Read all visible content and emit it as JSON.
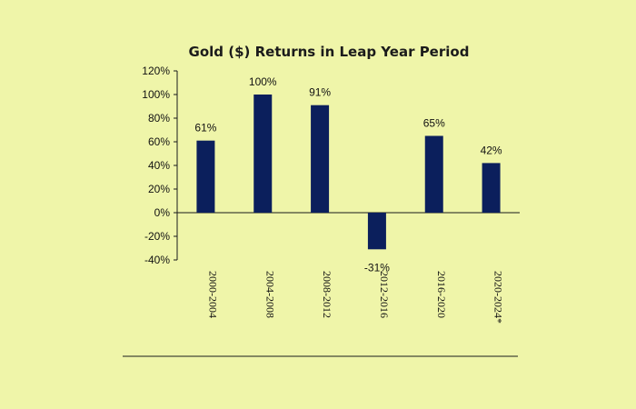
{
  "chart_data": {
    "type": "bar",
    "title": "Gold ($) Returns in Leap Year Period",
    "xlabel": "",
    "ylabel": "",
    "categories": [
      "2000-2004",
      "2004-2008",
      "2008-2012",
      "2012-2016",
      "2016-2020",
      "2020-2024*"
    ],
    "values": [
      61,
      100,
      91,
      -31,
      65,
      42
    ],
    "value_labels": [
      "61%",
      "100%",
      "91%",
      "-31%",
      "65%",
      "42%"
    ],
    "ylim": [
      -40,
      120
    ],
    "yticks": [
      -40,
      -20,
      0,
      20,
      40,
      60,
      80,
      100,
      120
    ],
    "ytick_labels": [
      "-40%",
      "-20%",
      "0%",
      "20%",
      "40%",
      "60%",
      "80%",
      "100%",
      "120%"
    ],
    "grid": false,
    "legend": "none",
    "colors": {
      "background": "#eff5a9",
      "bar": "#0b1f5c",
      "axis": "#1a1a1a"
    }
  }
}
